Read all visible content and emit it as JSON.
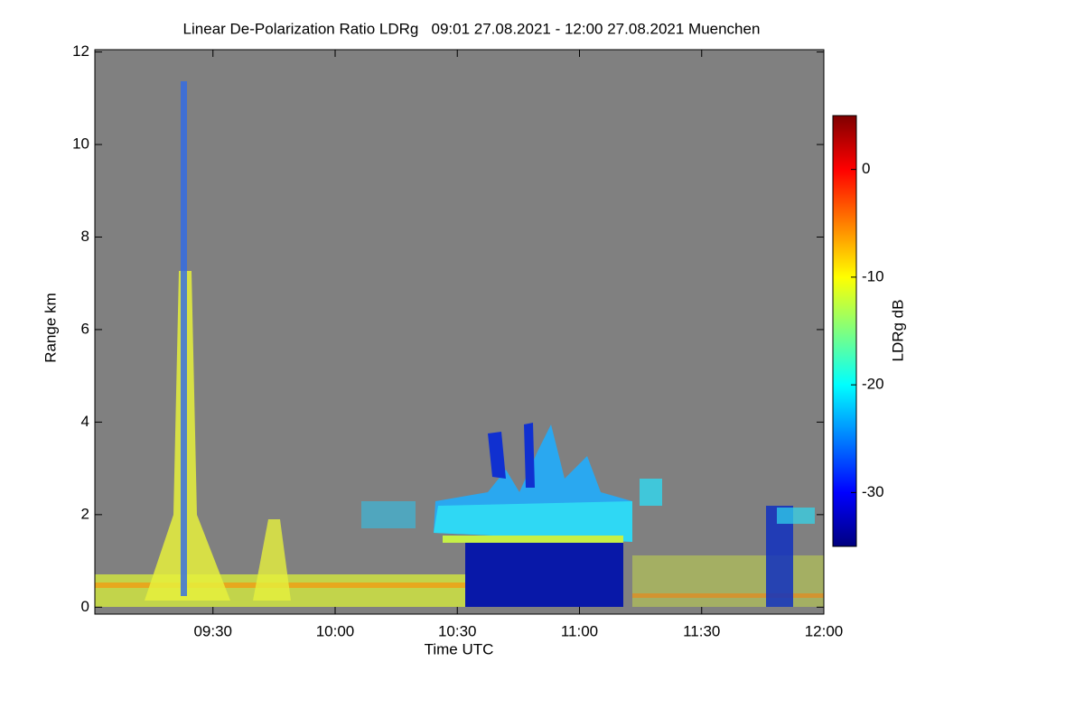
{
  "chart_data": {
    "type": "heatmap",
    "title": "Linear De-Polarization Ratio LDRg   09:01 27.08.2021 - 12:00 27.08.2021 Muenchen",
    "x_label": "Time UTC",
    "y_label": "Range km",
    "xlim": [
      9.0167,
      12.0
    ],
    "xticks": [
      {
        "value": 9.5,
        "label": "09:30"
      },
      {
        "value": 10.0,
        "label": "10:00"
      },
      {
        "value": 10.5,
        "label": "10:30"
      },
      {
        "value": 11.0,
        "label": "11:00"
      },
      {
        "value": 11.5,
        "label": "11:30"
      },
      {
        "value": 12.0,
        "label": "12:00"
      }
    ],
    "ylim": [
      -0.15,
      12.05
    ],
    "yticks": [
      0,
      2,
      4,
      6,
      8,
      10,
      12
    ],
    "background_color": "#808080",
    "colorbar": {
      "label": "LDRg dB",
      "lim": [
        -35,
        5
      ],
      "ticks": [
        0,
        -10,
        -20,
        -30
      ],
      "colormap": [
        "#00007f",
        "#0000ff",
        "#007fff",
        "#00ffff",
        "#7fff7f",
        "#ffff00",
        "#ff7f00",
        "#ff0000",
        "#7f0000"
      ]
    }
  }
}
